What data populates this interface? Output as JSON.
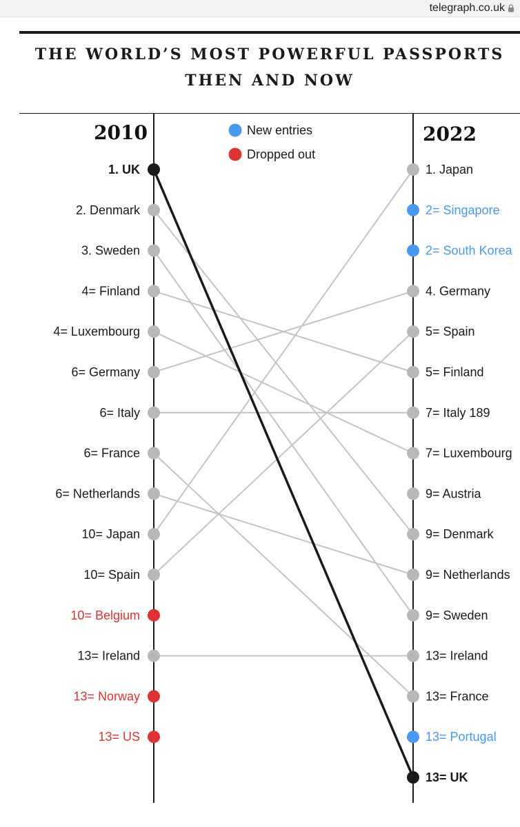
{
  "header": {
    "domain": "telegraph.co.uk"
  },
  "chart_data": {
    "type": "slope",
    "title_line1": "THE WORLD’S MOST POWERFUL PASSPORTS",
    "title_line2": "THEN AND NOW",
    "left_year": "2010",
    "right_year": "2022",
    "legend": [
      {
        "label": "New entries",
        "color": "#4a98f0"
      },
      {
        "label": "Dropped out",
        "color": "#dd3333"
      }
    ],
    "colors": {
      "default_dot": "#b8b8b8",
      "default_line": "#c4c4c4",
      "uk": "#1a1a1a",
      "new_entry": "#4a98f0",
      "dropped": "#dd3333"
    },
    "left": [
      {
        "label": "1. UK",
        "status": "uk"
      },
      {
        "label": "2. Denmark",
        "status": "normal"
      },
      {
        "label": "3. Sweden",
        "status": "normal"
      },
      {
        "label": "4= Finland",
        "status": "normal"
      },
      {
        "label": "4= Luxembourg",
        "status": "normal"
      },
      {
        "label": "6= Germany",
        "status": "normal"
      },
      {
        "label": "6= Italy",
        "status": "normal"
      },
      {
        "label": "6= France",
        "status": "normal"
      },
      {
        "label": "6= Netherlands",
        "status": "normal"
      },
      {
        "label": "10= Japan",
        "status": "normal"
      },
      {
        "label": "10= Spain",
        "status": "normal"
      },
      {
        "label": "10= Belgium",
        "status": "dropped"
      },
      {
        "label": "13= Ireland",
        "status": "normal"
      },
      {
        "label": "13= Norway",
        "status": "dropped"
      },
      {
        "label": "13= US",
        "status": "dropped"
      }
    ],
    "right": [
      {
        "label": "1. Japan",
        "status": "normal"
      },
      {
        "label": "2= Singapore",
        "status": "new"
      },
      {
        "label": "2= South Korea",
        "status": "new"
      },
      {
        "label": "4. Germany",
        "status": "normal"
      },
      {
        "label": "5= Spain",
        "status": "normal"
      },
      {
        "label": "5= Finland",
        "status": "normal"
      },
      {
        "label": "7= Italy 189",
        "status": "normal"
      },
      {
        "label": "7= Luxembourg",
        "status": "normal"
      },
      {
        "label": "9= Austria",
        "status": "normal"
      },
      {
        "label": "9= Denmark",
        "status": "normal"
      },
      {
        "label": "9= Netherlands",
        "status": "normal"
      },
      {
        "label": "9= Sweden",
        "status": "normal"
      },
      {
        "label": "13= Ireland",
        "status": "normal"
      },
      {
        "label": "13= France",
        "status": "normal"
      },
      {
        "label": "13= Portugal",
        "status": "new"
      },
      {
        "label": "13= UK",
        "status": "uk"
      }
    ],
    "links": [
      {
        "from": 0,
        "to": 15,
        "highlight": true
      },
      {
        "from": 1,
        "to": 9
      },
      {
        "from": 2,
        "to": 11
      },
      {
        "from": 3,
        "to": 5
      },
      {
        "from": 4,
        "to": 7
      },
      {
        "from": 5,
        "to": 3
      },
      {
        "from": 6,
        "to": 6
      },
      {
        "from": 7,
        "to": 13
      },
      {
        "from": 8,
        "to": 10
      },
      {
        "from": 9,
        "to": 0
      },
      {
        "from": 10,
        "to": 4
      },
      {
        "from": 12,
        "to": 12
      }
    ]
  }
}
